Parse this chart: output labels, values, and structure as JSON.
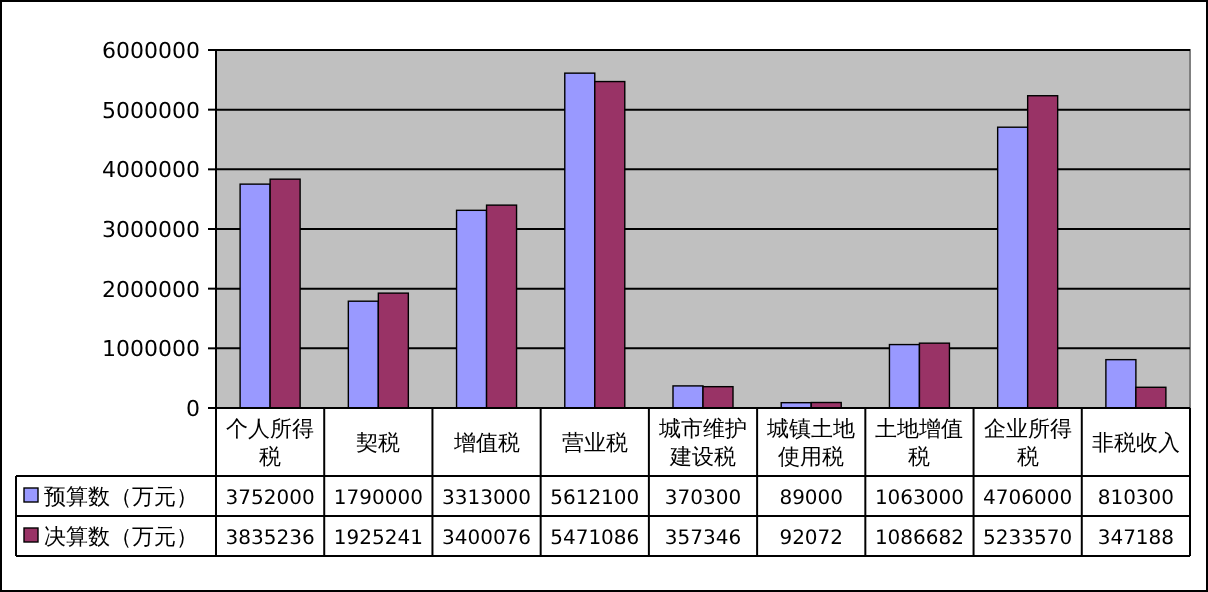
{
  "chart_data": {
    "type": "bar",
    "categories": [
      "个人所得税",
      "契税",
      "增值税",
      "营业税",
      "城市维护建设税",
      "城镇土地使用税",
      "土地增值税",
      "企业所得税",
      "非税收入"
    ],
    "series": [
      {
        "name": "预算数（万元）",
        "color": "#9999ff",
        "values": [
          3752000,
          1790000,
          3313000,
          5612100,
          370300,
          89000,
          1063000,
          4706000,
          810300
        ]
      },
      {
        "name": "决算数（万元）",
        "color": "#993366",
        "values": [
          3835236,
          1925241,
          3400076,
          5471086,
          357346,
          92072,
          1086682,
          5233570,
          347188
        ]
      }
    ],
    "ylim": [
      0,
      6000000
    ],
    "yticks": [
      0,
      1000000,
      2000000,
      3000000,
      4000000,
      5000000,
      6000000
    ],
    "grid": "y",
    "legend": "bottom",
    "data_labels": true
  }
}
